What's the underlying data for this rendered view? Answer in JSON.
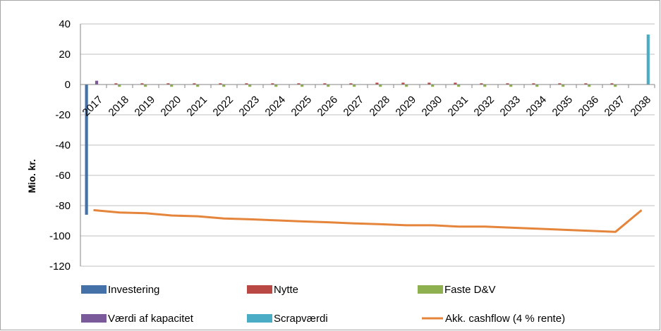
{
  "chart_data": {
    "type": "bar",
    "title": "",
    "ylabel": "Mio. kr.",
    "xlabel": "",
    "ylim": [
      -120,
      40
    ],
    "yticks": [
      40,
      20,
      0,
      -20,
      -40,
      -60,
      -80,
      -100,
      -120
    ],
    "grid": true,
    "legend_position": "bottom",
    "categories": [
      "2017",
      "2018",
      "2019",
      "2020",
      "2021",
      "2022",
      "2023",
      "2024",
      "2025",
      "2026",
      "2027",
      "2028",
      "2029",
      "2030",
      "2031",
      "2032",
      "2033",
      "2034",
      "2035",
      "2036",
      "2037",
      "2038"
    ],
    "series": [
      {
        "name": "Investering",
        "kind": "bar",
        "color": "#4472A8",
        "values": [
          -86,
          0,
          0,
          0,
          0,
          0,
          0,
          0,
          0,
          0,
          0,
          0,
          0,
          0,
          0,
          0,
          0,
          0,
          0,
          0,
          0,
          0
        ]
      },
      {
        "name": "Nytte",
        "kind": "bar",
        "color": "#B94743",
        "values": [
          0,
          0.8,
          0.8,
          0.8,
          0.8,
          0.8,
          0.8,
          0.8,
          0.8,
          0.8,
          0.8,
          1.2,
          1.2,
          1.2,
          1.2,
          0.8,
          0.8,
          0.8,
          0.8,
          0.8,
          0.8,
          0
        ]
      },
      {
        "name": "Faste D&V",
        "kind": "bar",
        "color": "#8FB04F",
        "values": [
          0,
          -1.5,
          -1.5,
          -1.5,
          -1.5,
          -1.5,
          -1.5,
          -1.5,
          -1.5,
          -1.5,
          -1.5,
          -1.5,
          -1.5,
          -1.5,
          -1.5,
          -1.5,
          -1.5,
          -1.5,
          -1.5,
          -1.5,
          -1.5,
          0
        ]
      },
      {
        "name": "Værdi af kapacitet",
        "kind": "bar",
        "color": "#7B5A9A",
        "values": [
          2.5,
          0,
          0,
          0,
          0,
          0,
          0,
          0,
          0,
          0,
          0,
          0,
          0,
          0,
          0,
          0,
          0,
          0,
          0,
          0,
          0,
          0
        ]
      },
      {
        "name": "Scrapværdi",
        "kind": "bar",
        "color": "#4AACC5",
        "values": [
          0,
          0,
          0,
          0,
          0,
          0,
          0,
          0,
          0,
          0,
          0,
          0,
          0,
          0,
          0,
          0,
          0,
          0,
          0,
          0,
          0,
          33
        ]
      },
      {
        "name": "Akk. cashflow (4 % rente)",
        "kind": "line",
        "color": "#E5853B",
        "values": [
          -83,
          -84.5,
          -85,
          -86.5,
          -87,
          -88.5,
          -89,
          -89.7,
          -90.4,
          -91,
          -91.7,
          -92.3,
          -93,
          -93,
          -93.8,
          -93.8,
          -94.5,
          -95.2,
          -95.9,
          -96.6,
          -97.3,
          -83
        ]
      }
    ]
  }
}
